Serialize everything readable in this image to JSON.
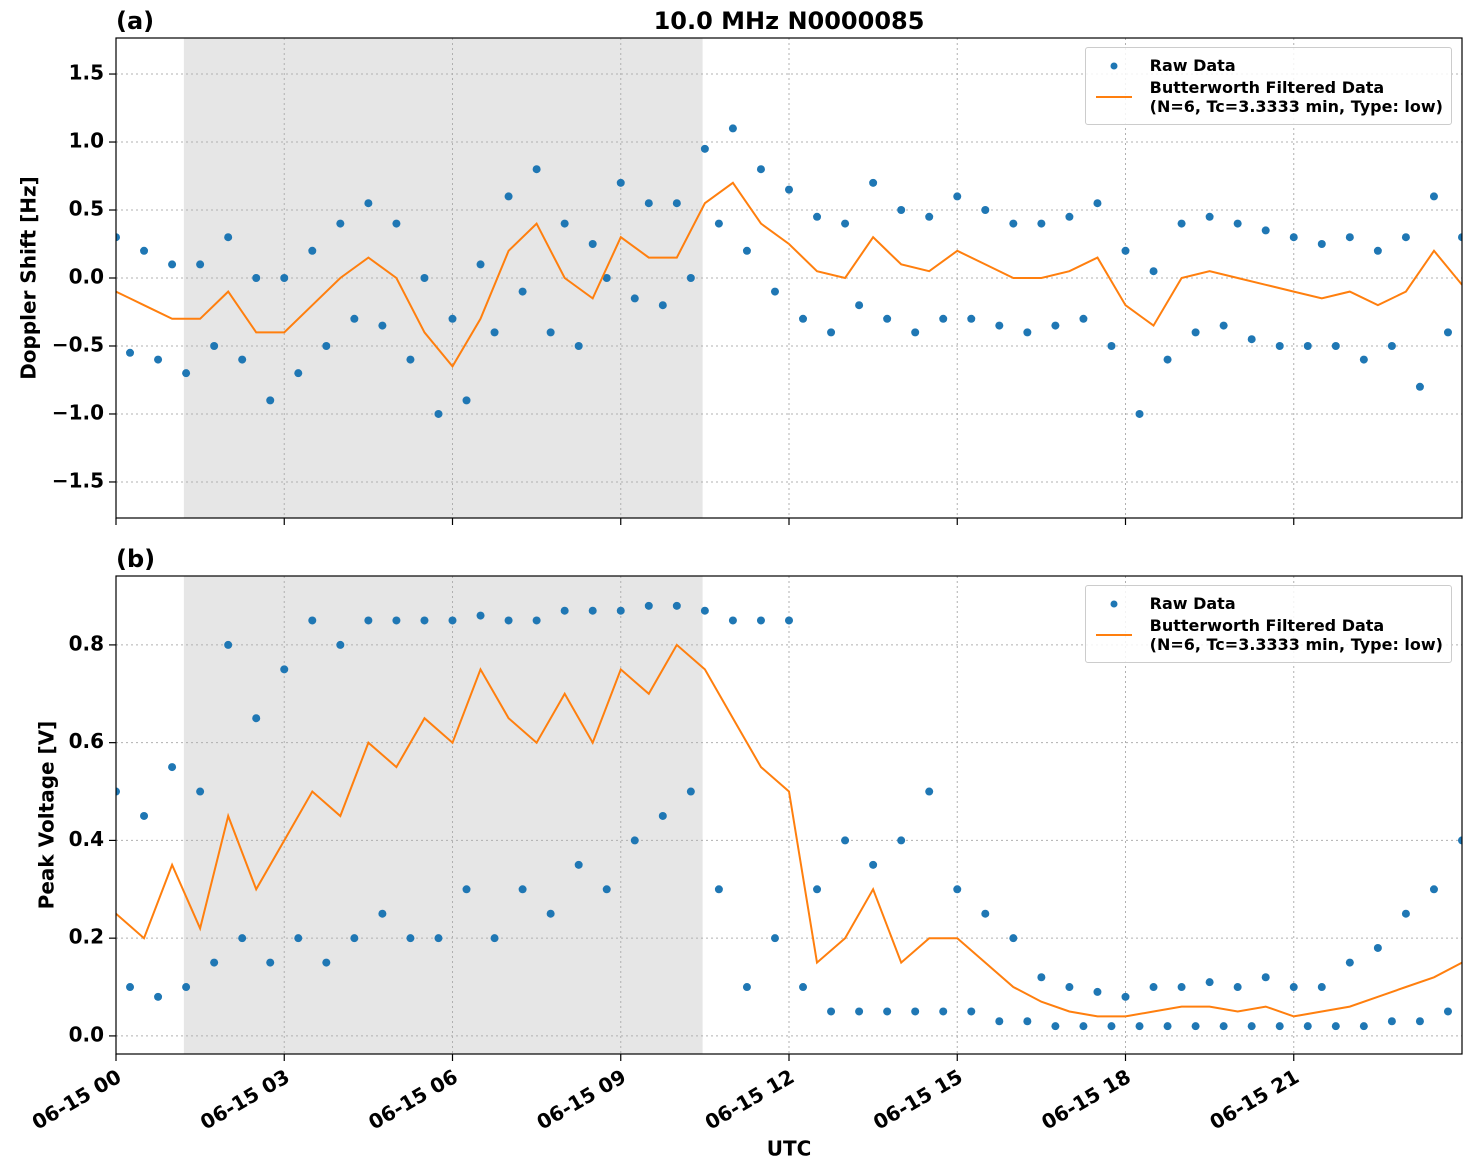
{
  "chart_data": [
    {
      "type": "line",
      "panel_label": "(a)",
      "title": "10.0 MHz N0000085",
      "ylabel": "Doppler Shift [Hz]",
      "xlim": [
        0,
        24
      ],
      "xticks": [
        0,
        3,
        6,
        9,
        12,
        15,
        18,
        21
      ],
      "ylim": [
        -1.765,
        1.765
      ],
      "yticks": [
        {
          "value": -1.5,
          "label": "−1.5"
        },
        {
          "value": -1.0,
          "label": "−1.0"
        },
        {
          "value": -0.5,
          "label": "−0.5"
        },
        {
          "value": 0.0,
          "label": "0.0"
        },
        0.5,
        {
          "value": 1.0,
          "label": "1.0"
        },
        1.5
      ],
      "grid": true,
      "legend": "upper right",
      "shade": {
        "span": [
          1.21,
          10.46
        ],
        "color": "#e6e6e6"
      },
      "series": [
        {
          "name": "Raw Data",
          "type": "scatter",
          "color": "#1f77b4",
          "x": [
            0,
            0.25,
            0.5,
            0.75,
            1,
            1.25,
            1.5,
            1.75,
            2,
            2.25,
            2.5,
            2.75,
            3,
            3.25,
            3.5,
            3.75,
            4,
            4.25,
            4.5,
            4.75,
            5,
            5.25,
            5.5,
            5.75,
            6,
            6.25,
            6.5,
            6.75,
            7,
            7.25,
            7.5,
            7.75,
            8,
            8.25,
            8.5,
            8.75,
            9,
            9.25,
            9.5,
            9.75,
            10,
            10.25,
            10.5,
            10.75,
            11,
            11.25,
            11.5,
            11.75,
            12,
            12.25,
            12.5,
            12.75,
            13,
            13.25,
            13.5,
            13.75,
            14,
            14.25,
            14.5,
            14.75,
            15,
            15.25,
            15.5,
            15.75,
            16,
            16.25,
            16.5,
            16.75,
            17,
            17.25,
            17.5,
            17.75,
            18,
            18.25,
            18.5,
            18.75,
            19,
            19.25,
            19.5,
            19.75,
            20,
            20.25,
            20.5,
            20.75,
            21,
            21.25,
            21.5,
            21.75,
            22,
            22.25,
            22.5,
            22.75,
            23,
            23.25,
            23.5,
            23.75,
            24
          ],
          "values": [
            0.3,
            -0.55,
            0.2,
            -0.6,
            0.1,
            -0.7,
            0.1,
            -0.5,
            0.3,
            -0.6,
            0.0,
            -0.9,
            0.0,
            -0.7,
            0.2,
            -0.5,
            0.4,
            -0.3,
            0.55,
            -0.35,
            0.4,
            -0.6,
            0.0,
            -1.0,
            -0.3,
            -0.9,
            0.1,
            -0.4,
            0.6,
            -0.1,
            0.8,
            -0.4,
            0.4,
            -0.5,
            0.25,
            0.0,
            0.7,
            -0.15,
            0.55,
            -0.2,
            0.55,
            0.0,
            0.95,
            0.4,
            1.1,
            0.2,
            0.8,
            -0.1,
            0.65,
            -0.3,
            0.45,
            -0.4,
            0.4,
            -0.2,
            0.7,
            -0.3,
            0.5,
            -0.4,
            0.45,
            -0.3,
            0.6,
            -0.3,
            0.5,
            -0.35,
            0.4,
            -0.4,
            0.4,
            -0.35,
            0.45,
            -0.3,
            0.55,
            -0.5,
            0.2,
            -1.0,
            0.05,
            -0.6,
            0.4,
            -0.4,
            0.45,
            -0.35,
            0.4,
            -0.45,
            0.35,
            -0.5,
            0.3,
            -0.5,
            0.25,
            -0.5,
            0.3,
            -0.6,
            0.2,
            -0.5,
            0.3,
            -0.8,
            0.6,
            -0.4,
            0.3
          ]
        },
        {
          "name": "Butterworth Filtered Data\n(N=6, Tc=3.3333 min, Type: low)",
          "type": "line",
          "color": "#ff7f0e",
          "x": [
            0,
            0.5,
            1,
            1.5,
            2,
            2.5,
            3,
            3.5,
            4,
            4.5,
            5,
            5.5,
            6,
            6.5,
            7,
            7.5,
            8,
            8.5,
            9,
            9.5,
            10,
            10.5,
            11,
            11.5,
            12,
            12.5,
            13,
            13.5,
            14,
            14.5,
            15,
            15.5,
            16,
            16.5,
            17,
            17.5,
            18,
            18.5,
            19,
            19.5,
            20,
            20.5,
            21,
            21.5,
            22,
            22.5,
            23,
            23.5,
            24
          ],
          "values": [
            -0.1,
            -0.2,
            -0.3,
            -0.3,
            -0.1,
            -0.4,
            -0.4,
            -0.2,
            0.0,
            0.15,
            0.0,
            -0.4,
            -0.65,
            -0.3,
            0.2,
            0.4,
            0.0,
            -0.15,
            0.3,
            0.15,
            0.15,
            0.55,
            0.7,
            0.4,
            0.25,
            0.05,
            0.0,
            0.3,
            0.1,
            0.05,
            0.2,
            0.1,
            0.0,
            0.0,
            0.05,
            0.15,
            -0.2,
            -0.35,
            0.0,
            0.05,
            0.0,
            -0.05,
            -0.1,
            -0.15,
            -0.1,
            -0.2,
            -0.1,
            0.2,
            -0.05
          ]
        }
      ]
    },
    {
      "type": "line",
      "panel_label": "(b)",
      "ylabel": "Peak Voltage [V]",
      "xlabel": "UTC",
      "xlim": [
        0,
        24
      ],
      "xticks": [
        {
          "value": 0,
          "label": "06-15 00"
        },
        {
          "value": 3,
          "label": "06-15 03"
        },
        {
          "value": 6,
          "label": "06-15 06"
        },
        {
          "value": 9,
          "label": "06-15 09"
        },
        {
          "value": 12,
          "label": "06-15 12"
        },
        {
          "value": 15,
          "label": "06-15 15"
        },
        {
          "value": 18,
          "label": "06-15 18"
        },
        {
          "value": 21,
          "label": "06-15 21"
        }
      ],
      "ylim": [
        -0.037,
        0.941
      ],
      "yticks": [
        {
          "value": 0.0,
          "label": "0.0"
        },
        0.2,
        0.4,
        0.6,
        0.8
      ],
      "grid": true,
      "legend": "upper right",
      "shade": {
        "span": [
          1.21,
          10.46
        ],
        "color": "#e6e6e6"
      },
      "series": [
        {
          "name": "Raw Data",
          "type": "scatter",
          "color": "#1f77b4",
          "x": [
            0,
            0.25,
            0.5,
            0.75,
            1,
            1.25,
            1.5,
            1.75,
            2,
            2.25,
            2.5,
            2.75,
            3,
            3.25,
            3.5,
            3.75,
            4,
            4.25,
            4.5,
            4.75,
            5,
            5.25,
            5.5,
            5.75,
            6,
            6.25,
            6.5,
            6.75,
            7,
            7.25,
            7.5,
            7.75,
            8,
            8.25,
            8.5,
            8.75,
            9,
            9.25,
            9.5,
            9.75,
            10,
            10.25,
            10.5,
            10.75,
            11,
            11.25,
            11.5,
            11.75,
            12,
            12.25,
            12.5,
            12.75,
            13,
            13.25,
            13.5,
            13.75,
            14,
            14.25,
            14.5,
            14.75,
            15,
            15.25,
            15.5,
            15.75,
            16,
            16.25,
            16.5,
            16.75,
            17,
            17.25,
            17.5,
            17.75,
            18,
            18.25,
            18.5,
            18.75,
            19,
            19.25,
            19.5,
            19.75,
            20,
            20.25,
            20.5,
            20.75,
            21,
            21.25,
            21.5,
            21.75,
            22,
            22.25,
            22.5,
            22.75,
            23,
            23.25,
            23.5,
            23.75,
            24
          ],
          "values": [
            0.5,
            0.1,
            0.45,
            0.08,
            0.55,
            0.1,
            0.5,
            0.15,
            0.8,
            0.2,
            0.65,
            0.15,
            0.75,
            0.2,
            0.85,
            0.15,
            0.8,
            0.2,
            0.85,
            0.25,
            0.85,
            0.2,
            0.85,
            0.2,
            0.85,
            0.3,
            0.86,
            0.2,
            0.85,
            0.3,
            0.85,
            0.25,
            0.87,
            0.35,
            0.87,
            0.3,
            0.87,
            0.4,
            0.88,
            0.45,
            0.88,
            0.5,
            0.87,
            0.3,
            0.85,
            0.1,
            0.85,
            0.2,
            0.85,
            0.1,
            0.3,
            0.05,
            0.4,
            0.05,
            0.35,
            0.05,
            0.4,
            0.05,
            0.5,
            0.05,
            0.3,
            0.05,
            0.25,
            0.03,
            0.2,
            0.03,
            0.12,
            0.02,
            0.1,
            0.02,
            0.09,
            0.02,
            0.08,
            0.02,
            0.1,
            0.02,
            0.1,
            0.02,
            0.11,
            0.02,
            0.1,
            0.02,
            0.12,
            0.02,
            0.1,
            0.02,
            0.1,
            0.02,
            0.15,
            0.02,
            0.18,
            0.03,
            0.25,
            0.03,
            0.3,
            0.05,
            0.4
          ]
        },
        {
          "name": "Butterworth Filtered Data\n(N=6, Tc=3.3333 min, Type: low)",
          "type": "line",
          "color": "#ff7f0e",
          "x": [
            0,
            0.5,
            1,
            1.5,
            2,
            2.5,
            3,
            3.5,
            4,
            4.5,
            5,
            5.5,
            6,
            6.5,
            7,
            7.5,
            8,
            8.5,
            9,
            9.5,
            10,
            10.5,
            11,
            11.5,
            12,
            12.5,
            13,
            13.5,
            14,
            14.5,
            15,
            15.5,
            16,
            16.5,
            17,
            17.5,
            18,
            18.5,
            19,
            19.5,
            20,
            20.5,
            21,
            21.5,
            22,
            22.5,
            23,
            23.5,
            24
          ],
          "values": [
            0.25,
            0.2,
            0.35,
            0.22,
            0.45,
            0.3,
            0.4,
            0.5,
            0.45,
            0.6,
            0.55,
            0.65,
            0.6,
            0.75,
            0.65,
            0.6,
            0.7,
            0.6,
            0.75,
            0.7,
            0.8,
            0.75,
            0.65,
            0.55,
            0.5,
            0.15,
            0.2,
            0.3,
            0.15,
            0.2,
            0.2,
            0.15,
            0.1,
            0.07,
            0.05,
            0.04,
            0.04,
            0.05,
            0.06,
            0.06,
            0.05,
            0.06,
            0.04,
            0.05,
            0.06,
            0.08,
            0.1,
            0.12,
            0.15
          ]
        }
      ]
    }
  ]
}
